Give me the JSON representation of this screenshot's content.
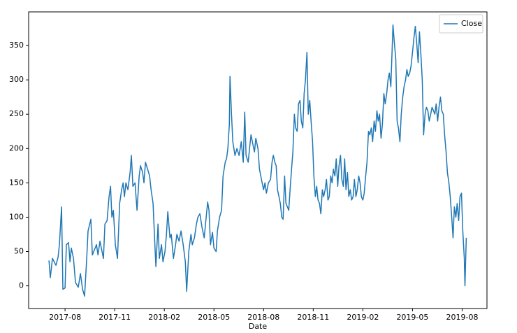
{
  "chart_data": {
    "type": "line",
    "xlabel": "Date",
    "xlim": [
      -2.2,
      25.5
    ],
    "ylim": [
      -33,
      399
    ],
    "xticks": [
      {
        "value": 0,
        "label": "2017-08"
      },
      {
        "value": 3,
        "label": "2017-11"
      },
      {
        "value": 6,
        "label": "2018-02"
      },
      {
        "value": 9,
        "label": "2018-05"
      },
      {
        "value": 12,
        "label": "2018-08"
      },
      {
        "value": 15,
        "label": "2018-11"
      },
      {
        "value": 18,
        "label": "2019-02"
      },
      {
        "value": 21,
        "label": "2019-05"
      },
      {
        "value": 24,
        "label": "2019-08"
      }
    ],
    "yticks": [
      0,
      50,
      100,
      150,
      200,
      250,
      300,
      350
    ],
    "legend": "upper right",
    "x": [
      -0.97,
      -0.89,
      -0.76,
      -0.55,
      -0.42,
      -0.34,
      -0.21,
      -0.13,
      0,
      0.08,
      0.21,
      0.3,
      0.38,
      0.51,
      0.63,
      0.8,
      0.93,
      1.06,
      1.18,
      1.31,
      1.39,
      1.56,
      1.65,
      1.9,
      1.99,
      2.11,
      2.32,
      2.41,
      2.54,
      2.66,
      2.75,
      2.83,
      2.92,
      3.04,
      3.17,
      3.3,
      3.42,
      3.51,
      3.59,
      3.68,
      3.8,
      3.93,
      4.01,
      4.1,
      4.23,
      4.35,
      4.48,
      4.56,
      4.69,
      4.77,
      4.86,
      4.99,
      5.11,
      5.2,
      5.32,
      5.41,
      5.49,
      5.62,
      5.7,
      5.83,
      5.92,
      6.04,
      6.13,
      6.21,
      6.34,
      6.42,
      6.55,
      6.68,
      6.76,
      6.89,
      7.01,
      7.14,
      7.27,
      7.35,
      7.48,
      7.61,
      7.69,
      7.82,
      7.94,
      8.03,
      8.15,
      8.28,
      8.41,
      8.53,
      8.62,
      8.7,
      8.79,
      8.91,
      9,
      9.13,
      9.21,
      9.34,
      9.46,
      9.55,
      9.68,
      9.76,
      9.84,
      9.93,
      9.97,
      10.06,
      10.14,
      10.27,
      10.39,
      10.52,
      10.65,
      10.77,
      10.86,
      10.94,
      11.07,
      11.15,
      11.24,
      11.32,
      11.45,
      11.53,
      11.66,
      11.75,
      11.87,
      12,
      12.08,
      12.17,
      12.29,
      12.42,
      12.51,
      12.59,
      12.68,
      12.76,
      12.84,
      12.93,
      13.01,
      13.1,
      13.18,
      13.27,
      13.35,
      13.44,
      13.52,
      13.6,
      13.69,
      13.77,
      13.86,
      13.94,
      14.03,
      14.11,
      14.2,
      14.28,
      14.37,
      14.45,
      14.53,
      14.62,
      14.7,
      14.79,
      14.87,
      14.96,
      15.04,
      15.13,
      15.21,
      15.29,
      15.38,
      15.46,
      15.55,
      15.63,
      15.72,
      15.8,
      15.89,
      15.97,
      16.06,
      16.14,
      16.22,
      16.31,
      16.39,
      16.48,
      16.56,
      16.65,
      16.73,
      16.82,
      16.9,
      16.98,
      17.07,
      17.15,
      17.24,
      17.32,
      17.41,
      17.49,
      17.58,
      17.66,
      17.75,
      17.83,
      17.91,
      18,
      18.08,
      18.17,
      18.25,
      18.34,
      18.42,
      18.51,
      18.59,
      18.68,
      18.76,
      18.85,
      18.93,
      19.01,
      19.1,
      19.18,
      19.27,
      19.35,
      19.44,
      19.52,
      19.6,
      19.69,
      19.77,
      19.82,
      19.9,
      19.99,
      20.07,
      20.15,
      20.24,
      20.32,
      20.41,
      20.49,
      20.58,
      20.66,
      20.74,
      20.83,
      20.91,
      21,
      21.08,
      21.17,
      21.25,
      21.34,
      21.42,
      21.5,
      21.59,
      21.67,
      21.76,
      21.84,
      21.93,
      22.01,
      22.1,
      22.18,
      22.27,
      22.35,
      22.43,
      22.52,
      22.6,
      22.69,
      22.77,
      22.86,
      22.94,
      23.03,
      23.11,
      23.2,
      23.28,
      23.37,
      23.45,
      23.53,
      23.62,
      23.7,
      23.79,
      23.87,
      23.96,
      24.04,
      24.13,
      24.17,
      24.25
    ],
    "series": [
      {
        "name": "Close",
        "color": "#1f77b4",
        "values": [
          37,
          12,
          40,
          30,
          42,
          60,
          115,
          -5,
          -3,
          60,
          63,
          35,
          55,
          40,
          5,
          -2,
          18,
          -5,
          -15,
          40,
          80,
          97,
          45,
          60,
          45,
          65,
          40,
          90,
          95,
          130,
          145,
          100,
          110,
          60,
          40,
          120,
          140,
          150,
          130,
          150,
          140,
          165,
          190,
          145,
          150,
          110,
          160,
          175,
          165,
          150,
          180,
          170,
          160,
          140,
          120,
          70,
          28,
          90,
          40,
          60,
          35,
          50,
          75,
          108,
          70,
          75,
          40,
          60,
          75,
          65,
          80,
          60,
          35,
          -8,
          50,
          75,
          60,
          70,
          90,
          100,
          105,
          85,
          70,
          100,
          122,
          110,
          60,
          78,
          55,
          50,
          80,
          100,
          110,
          160,
          180,
          185,
          200,
          235,
          305,
          250,
          210,
          190,
          200,
          190,
          210,
          180,
          253,
          190,
          180,
          200,
          220,
          210,
          195,
          215,
          200,
          170,
          155,
          140,
          150,
          135,
          150,
          155,
          180,
          190,
          180,
          175,
          140,
          130,
          120,
          100,
          97,
          160,
          120,
          115,
          110,
          140,
          170,
          195,
          250,
          230,
          225,
          265,
          270,
          240,
          230,
          280,
          300,
          340,
          250,
          270,
          240,
          210,
          160,
          130,
          145,
          125,
          120,
          105,
          140,
          130,
          140,
          155,
          125,
          130,
          160,
          150,
          170,
          160,
          185,
          145,
          175,
          190,
          155,
          145,
          185,
          140,
          165,
          130,
          140,
          125,
          130,
          155,
          130,
          140,
          160,
          150,
          130,
          125,
          135,
          160,
          180,
          225,
          220,
          230,
          210,
          240,
          225,
          255,
          240,
          250,
          215,
          235,
          280,
          265,
          280,
          300,
          310,
          290,
          345,
          380,
          355,
          330,
          240,
          230,
          210,
          250,
          275,
          290,
          300,
          315,
          305,
          310,
          320,
          340,
          360,
          378,
          355,
          325,
          370,
          340,
          300,
          220,
          250,
          260,
          255,
          240,
          250,
          260,
          255,
          250,
          265,
          240,
          260,
          275,
          255,
          250,
          220,
          195,
          165,
          150,
          130,
          100,
          70,
          115,
          100,
          120,
          95,
          130,
          135,
          80,
          40,
          0,
          70
        ]
      }
    ]
  }
}
